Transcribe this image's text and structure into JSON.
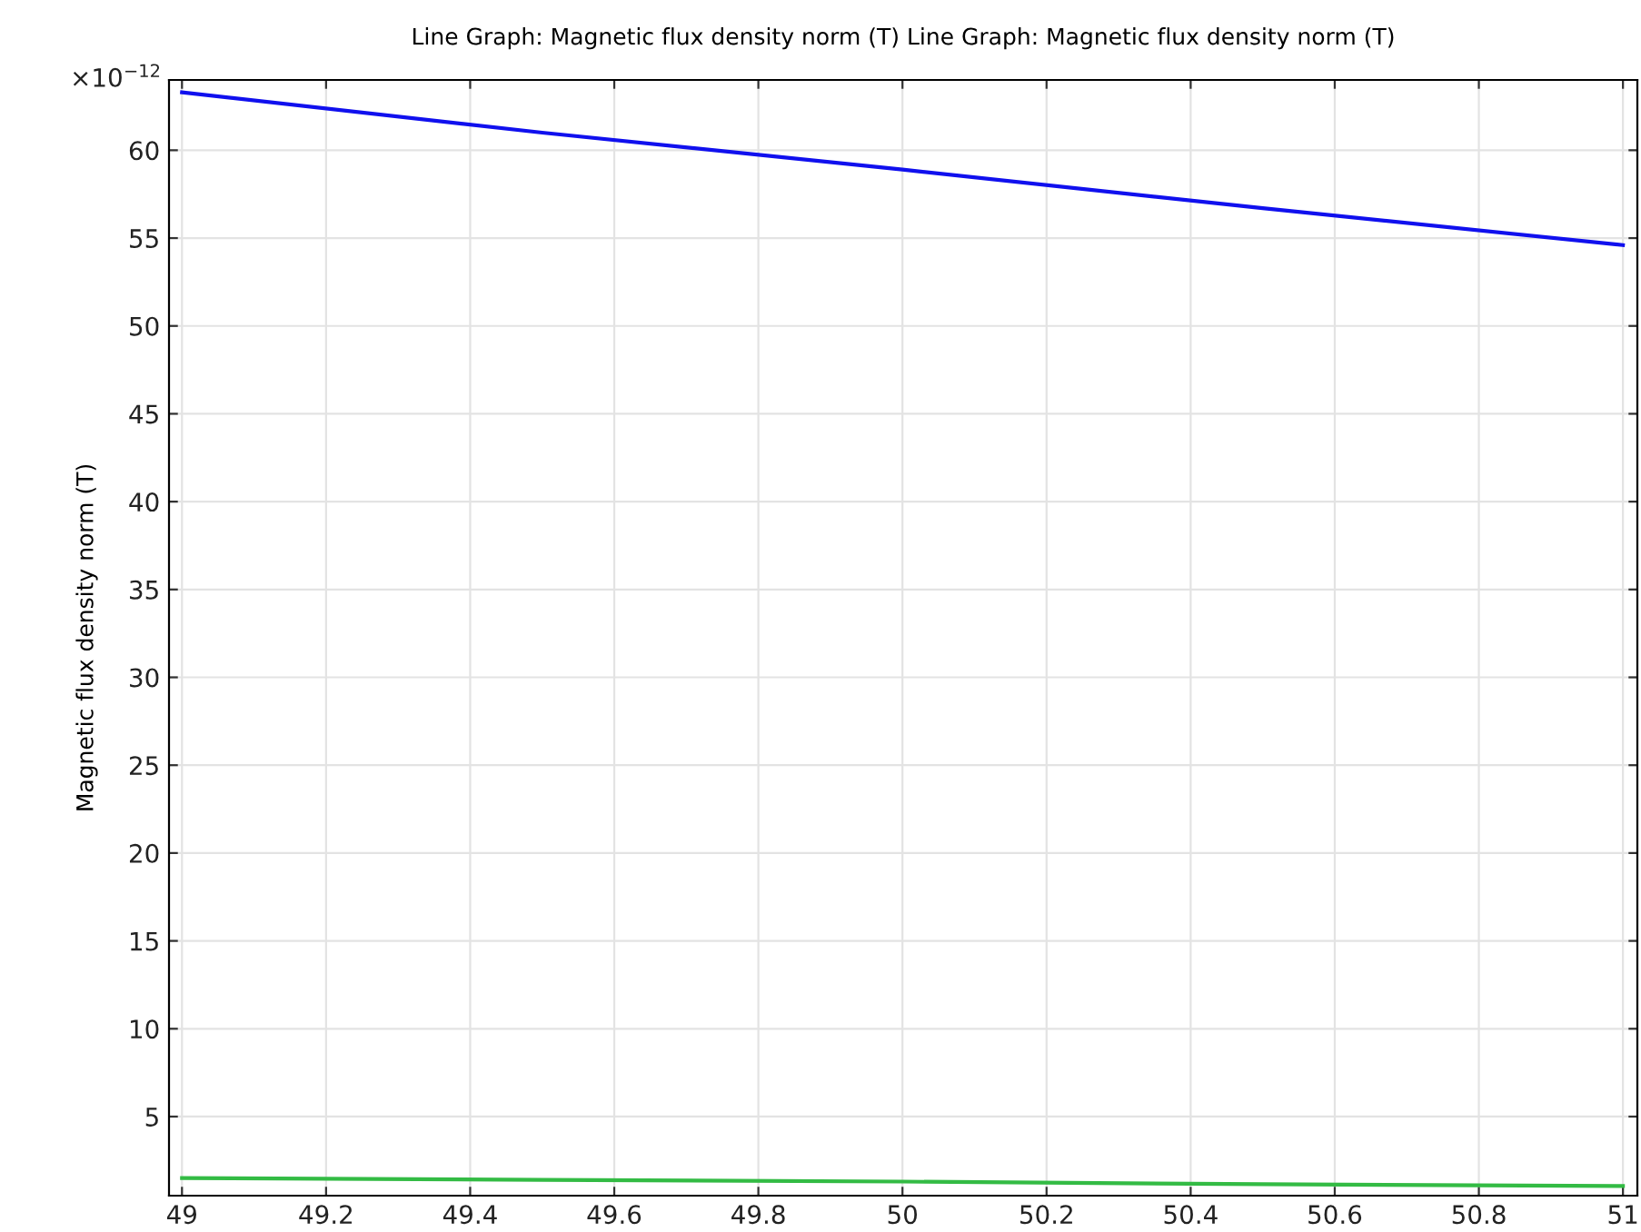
{
  "chart_data": {
    "type": "line",
    "title": "Line Graph: Magnetic flux density norm (T) Line Graph: Magnetic flux density norm (T)",
    "ylabel": "Magnetic flux density norm (T)",
    "annotations": [
      "×10$^{−12}$"
    ],
    "series": [
      {
        "color": "#1010ee",
        "x": [
          49,
          49.5,
          50,
          50.5,
          51
        ],
        "values": [
          63.3,
          61.0,
          58.9,
          56.7,
          54.6
        ]
      },
      {
        "color": "#33bb44",
        "x": [
          49,
          49.5,
          50,
          50.5,
          51
        ],
        "values": [
          1.5,
          1.4,
          1.3,
          1.15,
          1.05
        ]
      }
    ],
    "xlim": [
      48.982,
      51.02
    ],
    "ylim": [
      0.5,
      64.0
    ],
    "xticks": [
      49,
      49.2,
      49.4,
      49.6,
      49.8,
      50,
      50.2,
      50.4,
      50.6,
      50.8,
      51
    ],
    "yticks": [
      5,
      10,
      15,
      20,
      25,
      30,
      35,
      40,
      45,
      50,
      55,
      60
    ],
    "grid": true,
    "legend": false,
    "line_style": "solid",
    "marker": "none"
  }
}
